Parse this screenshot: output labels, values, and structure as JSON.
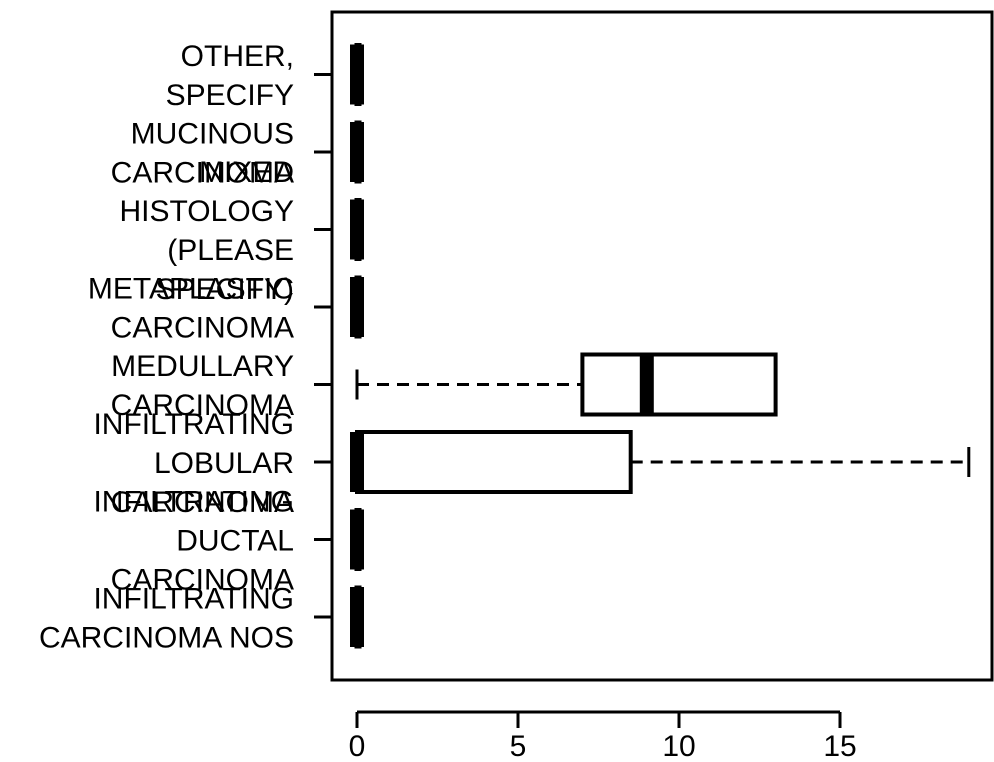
{
  "chart_data": {
    "type": "boxplot",
    "orientation": "horizontal",
    "title": "",
    "xlabel": "",
    "ylabel": "",
    "xlim": [
      -1,
      19.6
    ],
    "x_ticks": [
      0,
      5,
      10,
      15
    ],
    "x_tick_labels": [
      "0",
      "5",
      "10",
      "15"
    ],
    "categories": [
      "INFILTRATING CARCINOMA NOS",
      "INFILTRATING DUCTAL CARCINOMA",
      "INFILTRATING LOBULAR CARCINOMA",
      "MEDULLARY CARCINOMA",
      "METAPLASTIC CARCINOMA",
      "MIXED HISTOLOGY (PLEASE SPECIFY)",
      "MUCINOUS CARCINOMA",
      "OTHER, SPECIFY"
    ],
    "label_lines": [
      [
        "INFILTRATING",
        "CARCINOMA NOS"
      ],
      [
        "INFILTRATING",
        "DUCTAL",
        "CARCINOMA"
      ],
      [
        "INFILTRATING",
        "LOBULAR",
        "CARCINOMA"
      ],
      [
        "MEDULLARY",
        "CARCINOMA"
      ],
      [
        "METAPLASTIC",
        "CARCINOMA"
      ],
      [
        "MIXED",
        "HISTOLOGY",
        "(PLEASE",
        "SPECIFY)"
      ],
      [
        "MUCINOUS",
        "CARCINOMA"
      ],
      [
        "OTHER,",
        "SPECIFY"
      ]
    ],
    "boxes": [
      {
        "min": 0,
        "q1": 0,
        "median": 0,
        "q3": 0,
        "max": 0
      },
      {
        "min": 0,
        "q1": 0,
        "median": 0,
        "q3": 0,
        "max": 0
      },
      {
        "min": 0,
        "q1": 0,
        "median": 0,
        "q3": 8.5,
        "max": 19
      },
      {
        "min": 0,
        "q1": 7,
        "median": 9,
        "q3": 13,
        "max": 13
      },
      {
        "min": 0,
        "q1": 0,
        "median": 0,
        "q3": 0,
        "max": 0
      },
      {
        "min": 0,
        "q1": 0,
        "median": 0,
        "q3": 0,
        "max": 0
      },
      {
        "min": 0,
        "q1": 0,
        "median": 0,
        "q3": 0,
        "max": 0
      },
      {
        "min": 0,
        "q1": 0,
        "median": 0,
        "q3": 0,
        "max": 0
      }
    ],
    "grid": false,
    "legend": "none"
  }
}
